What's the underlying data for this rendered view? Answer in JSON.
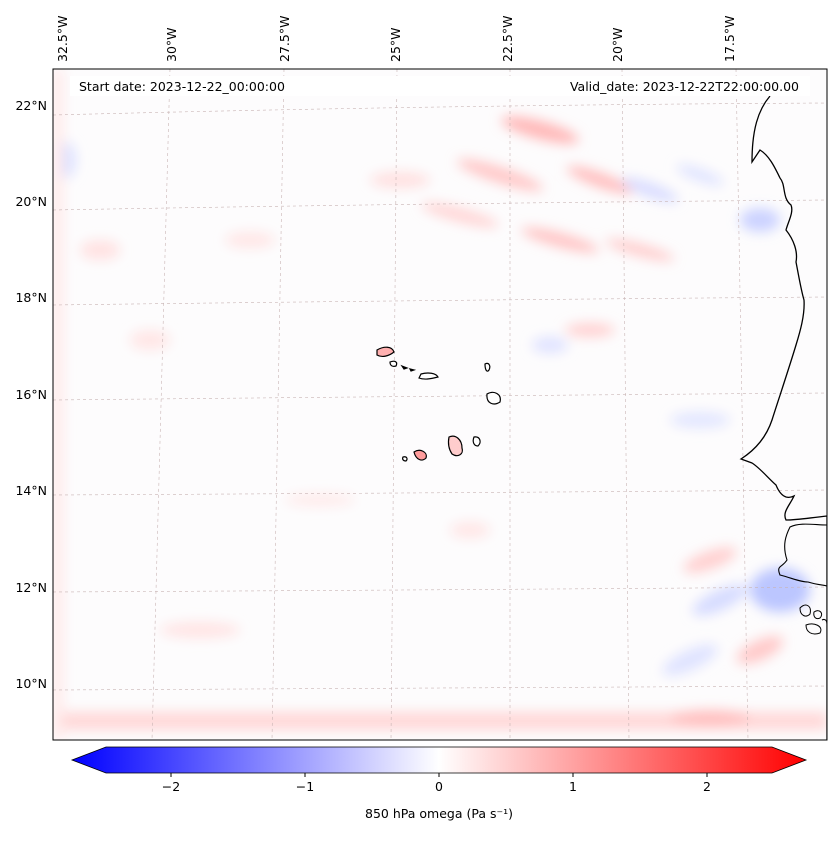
{
  "map": {
    "start_label": "Start date: 2023-12-22_00:00:00",
    "valid_label": "Valid_date: 2023-12-22T22:00:00.00",
    "lon_ticks": [
      "32.5°W",
      "30°W",
      "27.5°W",
      "25°W",
      "22.5°W",
      "20°W",
      "17.5°W"
    ],
    "lat_ticks": [
      "22°N",
      "20°N",
      "18°N",
      "16°N",
      "14°N",
      "12°N",
      "10°N"
    ],
    "colors": {
      "negative": "#0000ff",
      "positive": "#ff0000",
      "neutral": "#ffffff",
      "coastline": "#000000",
      "gridline": "#c8b4b4"
    }
  },
  "colorbar": {
    "label": "850 hPa omega (Pa s⁻¹)",
    "ticks": [
      "−2",
      "−1",
      "0",
      "1",
      "2"
    ],
    "tick_values": [
      -2,
      -1,
      0,
      1,
      2
    ],
    "vmin": -2.6,
    "vmax": 2.6
  }
}
